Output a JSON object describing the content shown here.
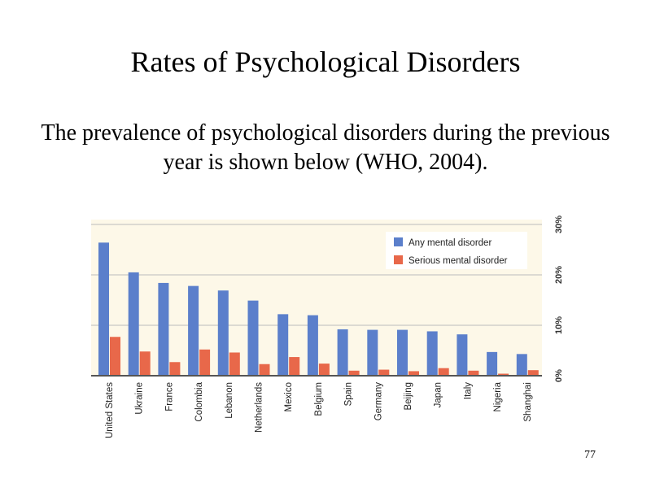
{
  "slide": {
    "title": "Rates of Psychological Disorders",
    "subtitle": "The prevalence of psychological disorders during the previous year is shown below (WHO, 2004).",
    "page_number": "77"
  },
  "colors": {
    "background": "#fdf8e8",
    "any": "#5b7fcb",
    "serious": "#e8684a",
    "grid": "#bbbbbb",
    "axis": "#555555"
  },
  "chart_data": {
    "type": "bar",
    "categories": [
      "United States",
      "Ukraine",
      "France",
      "Colombia",
      "Lebanon",
      "Netherlands",
      "Mexico",
      "Belgium",
      "Spain",
      "Germany",
      "Beijing",
      "Japan",
      "Italy",
      "Nigeria",
      "Shanghai"
    ],
    "series": [
      {
        "name": "Any mental disorder",
        "values": [
          26.4,
          20.5,
          18.4,
          17.8,
          16.9,
          14.9,
          12.2,
          12.0,
          9.2,
          9.1,
          9.1,
          8.8,
          8.2,
          4.7,
          4.3
        ]
      },
      {
        "name": "Serious mental disorder",
        "values": [
          7.7,
          4.8,
          2.7,
          5.2,
          4.6,
          2.3,
          3.7,
          2.4,
          1.0,
          1.2,
          0.9,
          1.5,
          1.0,
          0.4,
          1.1
        ]
      }
    ],
    "ylim": [
      0,
      30
    ],
    "yticks": [
      "0%",
      "10%",
      "20%",
      "30%"
    ],
    "y_axis_side": "right",
    "grid": true,
    "legend": "top-right"
  }
}
